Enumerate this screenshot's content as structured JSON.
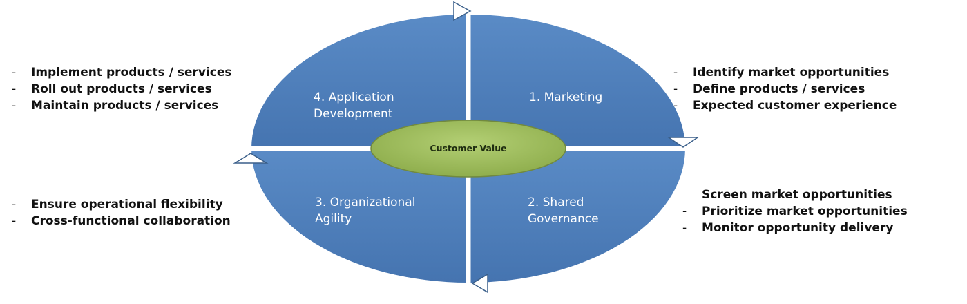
{
  "center": {
    "label": "Customer Value"
  },
  "quadrants": {
    "marketing": {
      "line1": "1. Marketing"
    },
    "governance": {
      "line1": "2. Shared",
      "line2": "Governance"
    },
    "agility": {
      "line1": "3. Organizational",
      "line2": "Agility"
    },
    "appdev": {
      "line1": "4. Application",
      "line2": "Development"
    }
  },
  "lists": {
    "top_left": [
      "Implement products /  services",
      "Roll out products / services",
      "Maintain products / services"
    ],
    "top_right": [
      "Identify market opportunities",
      "Define products / services",
      "Expected customer experience"
    ],
    "bottom_left": [
      "Ensure operational flexibility",
      "Cross-functional collaboration"
    ],
    "bottom_right": [
      "Screen market opportunities",
      "Prioritize market opportunities",
      "Monitor opportunity delivery"
    ]
  },
  "colors": {
    "quadrant_fill": "#4f81bd",
    "center_fill": "#9bbb59",
    "center_stroke": "#71893f",
    "divider": "#ffffff",
    "arrow_fill": "#ffffff",
    "arrow_stroke": "#3a5f8a"
  }
}
